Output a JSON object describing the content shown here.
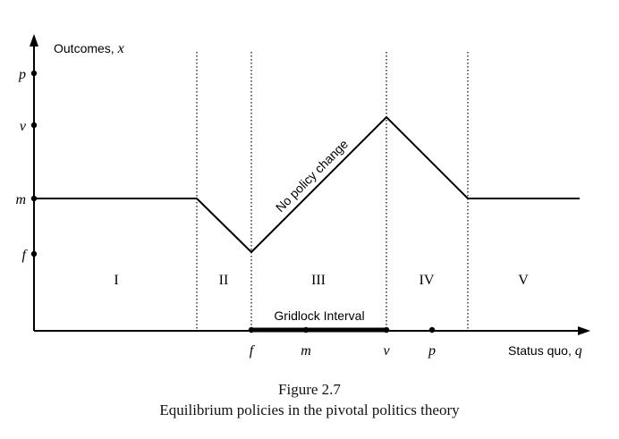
{
  "axes": {
    "y_label": "Outcomes, x",
    "y_label_prefix": "Outcomes, ",
    "y_label_var": "x",
    "x_label": "Status quo, q",
    "x_label_prefix": "Status quo, ",
    "x_label_var": "q"
  },
  "y_ticks": [
    "p",
    "v",
    "m",
    "f"
  ],
  "x_ticks": [
    "f",
    "m",
    "v",
    "p"
  ],
  "regions": [
    "I",
    "II",
    "III",
    "IV",
    "V"
  ],
  "annotations": {
    "line_label": "No policy change",
    "interval_label": "Gridlock Interval"
  },
  "caption": {
    "number": "Figure 2.7",
    "title": "Equilibrium policies in the pivotal politics theory"
  }
}
